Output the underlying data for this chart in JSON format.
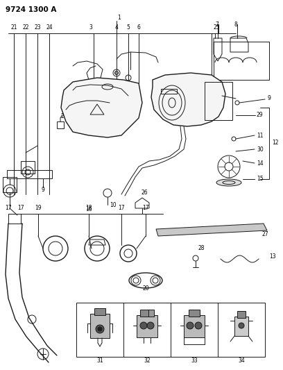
{
  "title": "9724 1300 A",
  "bg_color": "#ffffff",
  "line_color": "#1a1a1a",
  "fig_width": 4.08,
  "fig_height": 5.33,
  "dpi": 100
}
